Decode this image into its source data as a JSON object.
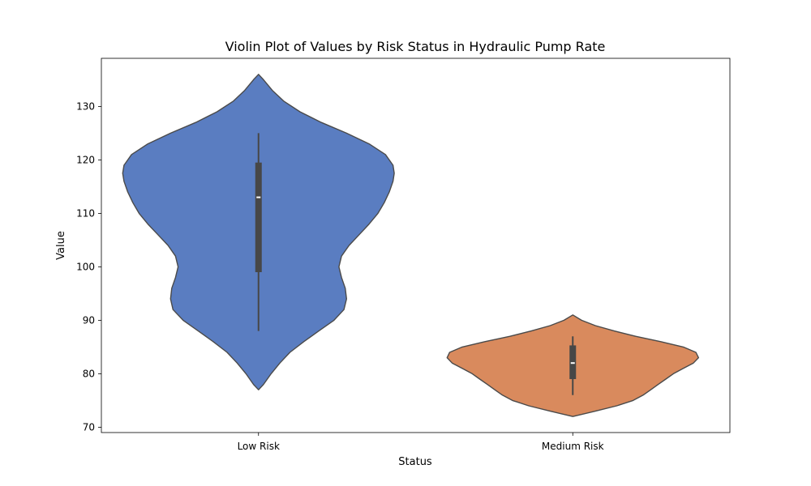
{
  "chart_data": {
    "type": "violin",
    "title": "Violin Plot of Values by Risk Status in Hydraulic Pump Rate",
    "xlabel": "Status",
    "ylabel": "Value",
    "ylim": [
      69,
      139
    ],
    "yticks": [
      70,
      80,
      90,
      100,
      110,
      120,
      130
    ],
    "grid": false,
    "categories": [
      "Low Risk",
      "Medium Risk"
    ],
    "series": [
      {
        "category": "Low Risk",
        "color": "#5a7dc1",
        "min": 88,
        "q1": 99,
        "median": 113,
        "q3": 119.5,
        "max": 125,
        "density_extent": [
          77,
          136
        ],
        "density_profile": [
          [
            77,
            0.0
          ],
          [
            78,
            0.04
          ],
          [
            80,
            0.1
          ],
          [
            82,
            0.17
          ],
          [
            84,
            0.25
          ],
          [
            86,
            0.36
          ],
          [
            88,
            0.48
          ],
          [
            90,
            0.6
          ],
          [
            92,
            0.68
          ],
          [
            94,
            0.7
          ],
          [
            96,
            0.69
          ],
          [
            98,
            0.66
          ],
          [
            100,
            0.64
          ],
          [
            102,
            0.66
          ],
          [
            104,
            0.72
          ],
          [
            106,
            0.8
          ],
          [
            108,
            0.88
          ],
          [
            110,
            0.95
          ],
          [
            112,
            1.0
          ],
          [
            114,
            1.04
          ],
          [
            116,
            1.07
          ],
          [
            117.5,
            1.08
          ],
          [
            119,
            1.07
          ],
          [
            121,
            1.01
          ],
          [
            123,
            0.88
          ],
          [
            125,
            0.7
          ],
          [
            127,
            0.5
          ],
          [
            129,
            0.33
          ],
          [
            131,
            0.2
          ],
          [
            133,
            0.11
          ],
          [
            135,
            0.04
          ],
          [
            136,
            0.0
          ]
        ]
      },
      {
        "category": "Medium Risk",
        "color": "#d98a5d",
        "min": 76,
        "q1": 79,
        "median": 82,
        "q3": 85.3,
        "max": 87,
        "density_extent": [
          72,
          91
        ],
        "density_profile": [
          [
            72,
            0.0
          ],
          [
            73,
            0.18
          ],
          [
            74,
            0.35
          ],
          [
            75,
            0.48
          ],
          [
            76,
            0.56
          ],
          [
            77,
            0.62
          ],
          [
            78,
            0.68
          ],
          [
            79,
            0.74
          ],
          [
            80,
            0.8
          ],
          [
            81,
            0.88
          ],
          [
            82,
            0.96
          ],
          [
            83,
            1.0
          ],
          [
            84,
            0.98
          ],
          [
            85,
            0.88
          ],
          [
            86,
            0.7
          ],
          [
            87,
            0.5
          ],
          [
            88,
            0.33
          ],
          [
            89,
            0.18
          ],
          [
            90,
            0.07
          ],
          [
            91,
            0.0
          ]
        ]
      }
    ]
  }
}
